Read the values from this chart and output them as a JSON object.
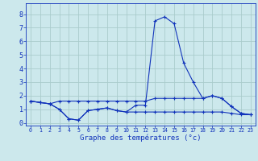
{
  "title": "Graphe des températures (°c)",
  "bg_color": "#cce8ec",
  "grid_color": "#aacccc",
  "line_color": "#1133bb",
  "xlim": [
    -0.5,
    23.5
  ],
  "ylim": [
    -0.2,
    8.8
  ],
  "yticks": [
    0,
    1,
    2,
    3,
    4,
    5,
    6,
    7,
    8
  ],
  "xticks": [
    0,
    1,
    2,
    3,
    4,
    5,
    6,
    7,
    8,
    9,
    10,
    11,
    12,
    13,
    14,
    15,
    16,
    17,
    18,
    19,
    20,
    21,
    22,
    23
  ],
  "series1_x": [
    0,
    1,
    2,
    3,
    4,
    5,
    6,
    7,
    8,
    9,
    10,
    11,
    12,
    13,
    14,
    15,
    16,
    17,
    18,
    19,
    20,
    21,
    22,
    23
  ],
  "series1_y": [
    1.6,
    1.5,
    1.4,
    1.0,
    0.3,
    0.2,
    0.9,
    1.0,
    1.1,
    0.9,
    0.8,
    1.3,
    1.3,
    7.5,
    7.8,
    7.3,
    4.4,
    3.0,
    1.8,
    2.0,
    1.8,
    1.2,
    0.7,
    0.6
  ],
  "series2_x": [
    0,
    1,
    2,
    3,
    4,
    5,
    6,
    7,
    8,
    9,
    10,
    11,
    12,
    13,
    14,
    15,
    16,
    17,
    18,
    19,
    20,
    21,
    22,
    23
  ],
  "series2_y": [
    1.6,
    1.5,
    1.4,
    1.6,
    1.6,
    1.6,
    1.6,
    1.6,
    1.6,
    1.6,
    1.6,
    1.6,
    1.6,
    1.8,
    1.8,
    1.8,
    1.8,
    1.8,
    1.8,
    2.0,
    1.8,
    1.2,
    0.7,
    0.6
  ],
  "series3_x": [
    0,
    1,
    2,
    3,
    4,
    5,
    6,
    7,
    8,
    9,
    10,
    11,
    12,
    13,
    14,
    15,
    16,
    17,
    18,
    19,
    20,
    21,
    22,
    23
  ],
  "series3_y": [
    1.6,
    1.5,
    1.4,
    1.0,
    0.3,
    0.2,
    0.9,
    1.0,
    1.1,
    0.9,
    0.8,
    0.8,
    0.8,
    0.8,
    0.8,
    0.8,
    0.8,
    0.8,
    0.8,
    0.8,
    0.8,
    0.7,
    0.6,
    0.6
  ],
  "xlabel_fontsize": 6.5,
  "ytick_fontsize": 6,
  "xtick_fontsize": 4.8
}
